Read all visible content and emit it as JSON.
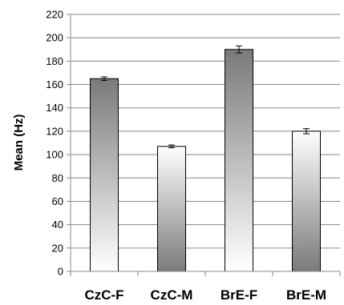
{
  "chart_data": {
    "type": "bar",
    "title": "",
    "xlabel": "",
    "ylabel": "Mean (Hz)",
    "categories": [
      "CzC-F",
      "CzC-M",
      "BrE-F",
      "BrE-M"
    ],
    "values": [
      165,
      107,
      190,
      120
    ],
    "error": [
      1.5,
      1.2,
      3,
      2.2
    ],
    "ylim": [
      0,
      220
    ],
    "yticks": [
      0,
      20,
      40,
      60,
      80,
      100,
      120,
      140,
      160,
      180,
      200,
      220
    ],
    "grid": "horizontal",
    "bar_styles": [
      "dark-top",
      "light-top",
      "dark-top",
      "light-top"
    ],
    "colors": {
      "dark": "#7a7a7a",
      "light": "#ffffff",
      "axis": "#888888",
      "grid": "#888888",
      "border": "#000000"
    }
  }
}
